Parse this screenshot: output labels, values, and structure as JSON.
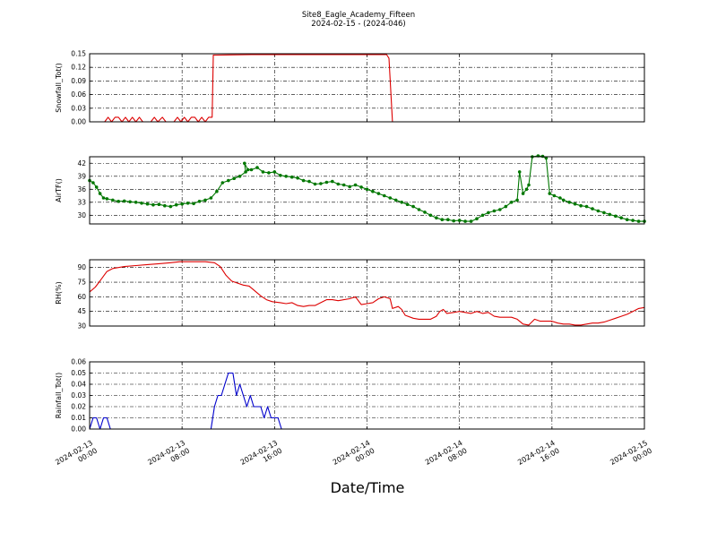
{
  "figure": {
    "title_line1": "Site8_Eagle_Academy_Fifteen",
    "title_line2": "2024-02-15 - (2024-046)",
    "xlabel": "Date/Time"
  },
  "x_axis": {
    "range_hours": [
      0,
      48
    ],
    "ticks": [
      {
        "h": 0,
        "line1": "2024-02-13",
        "line2": "00:00"
      },
      {
        "h": 8,
        "line1": "2024-02-13",
        "line2": "08:00"
      },
      {
        "h": 16,
        "line1": "2024-02-13",
        "line2": "16:00"
      },
      {
        "h": 24,
        "line1": "2024-02-14",
        "line2": "00:00"
      },
      {
        "h": 32,
        "line1": "2024-02-14",
        "line2": "08:00"
      },
      {
        "h": 40,
        "line1": "2024-02-14",
        "line2": "16:00"
      },
      {
        "h": 48,
        "line1": "2024-02-15",
        "line2": "00:00"
      }
    ]
  },
  "chart_data": [
    {
      "type": "line",
      "ylabel": "Snowfall_Tot()",
      "ylim": [
        0,
        0.15
      ],
      "yticks": [
        "0.00",
        "0.03",
        "0.06",
        "0.09",
        "0.12",
        "0.15"
      ],
      "color": "#dd0000",
      "markers": false,
      "grid": true,
      "points": [
        [
          0,
          0
        ],
        [
          1.3,
          0
        ],
        [
          1.6,
          0.01
        ],
        [
          1.9,
          0
        ],
        [
          2.2,
          0.01
        ],
        [
          2.5,
          0.01
        ],
        [
          2.8,
          0
        ],
        [
          3.1,
          0.01
        ],
        [
          3.4,
          0
        ],
        [
          3.7,
          0.01
        ],
        [
          4,
          0
        ],
        [
          4.3,
          0.01
        ],
        [
          4.6,
          0
        ],
        [
          5,
          0
        ],
        [
          5.3,
          0
        ],
        [
          5.6,
          0.01
        ],
        [
          5.9,
          0
        ],
        [
          6.3,
          0.01
        ],
        [
          6.6,
          0
        ],
        [
          7,
          0
        ],
        [
          7.3,
          0
        ],
        [
          7.6,
          0.01
        ],
        [
          7.9,
          0
        ],
        [
          8.2,
          0.01
        ],
        [
          8.5,
          0
        ],
        [
          8.8,
          0.01
        ],
        [
          9.1,
          0.01
        ],
        [
          9.4,
          0
        ],
        [
          9.7,
          0.01
        ],
        [
          10,
          0
        ],
        [
          10.3,
          0.01
        ],
        [
          10.6,
          0.01
        ],
        [
          10.7,
          0.147
        ],
        [
          11,
          0.147
        ],
        [
          14,
          0.148
        ],
        [
          18,
          0.148
        ],
        [
          22,
          0.148
        ],
        [
          25,
          0.148
        ],
        [
          25.7,
          0.148
        ],
        [
          25.9,
          0.14
        ],
        [
          26.2,
          0
        ],
        [
          48,
          0
        ]
      ]
    },
    {
      "type": "line",
      "ylabel": "AirTF()",
      "ylim": [
        28,
        43.5
      ],
      "yticks": [
        "30",
        "33",
        "36",
        "39",
        "42"
      ],
      "color": "#007700",
      "markers": true,
      "grid": true,
      "points": [
        [
          0,
          38
        ],
        [
          0.3,
          37.5
        ],
        [
          0.6,
          36.5
        ],
        [
          0.9,
          35
        ],
        [
          1.2,
          34
        ],
        [
          1.5,
          33.8
        ],
        [
          2,
          33.5
        ],
        [
          2.5,
          33.2
        ],
        [
          3,
          33.3
        ],
        [
          3.5,
          33.1
        ],
        [
          4,
          33
        ],
        [
          4.5,
          32.8
        ],
        [
          5,
          32.6
        ],
        [
          5.5,
          32.4
        ],
        [
          6,
          32.5
        ],
        [
          6.5,
          32.2
        ],
        [
          7,
          32
        ],
        [
          7.5,
          32.4
        ],
        [
          8,
          32.6
        ],
        [
          8.5,
          32.8
        ],
        [
          9,
          32.7
        ],
        [
          9.5,
          33.2
        ],
        [
          10,
          33.5
        ],
        [
          10.5,
          34
        ],
        [
          11,
          35.5
        ],
        [
          11.5,
          37.5
        ],
        [
          12,
          38
        ],
        [
          12.5,
          38.5
        ],
        [
          13,
          39
        ],
        [
          13.5,
          40
        ],
        [
          13.4,
          42
        ],
        [
          13.7,
          40.5
        ],
        [
          14,
          40.5
        ],
        [
          14.5,
          41
        ],
        [
          15,
          40
        ],
        [
          15.5,
          39.8
        ],
        [
          16,
          40
        ],
        [
          16.5,
          39.2
        ],
        [
          17,
          39
        ],
        [
          17.5,
          38.8
        ],
        [
          18,
          38.6
        ],
        [
          18.5,
          38
        ],
        [
          19,
          37.8
        ],
        [
          19.5,
          37.2
        ],
        [
          20,
          37.3
        ],
        [
          20.5,
          37.6
        ],
        [
          21,
          37.8
        ],
        [
          21.5,
          37.2
        ],
        [
          22,
          37
        ],
        [
          22.5,
          36.6
        ],
        [
          23,
          37
        ],
        [
          23.5,
          36.5
        ],
        [
          24,
          36
        ],
        [
          24.5,
          35.5
        ],
        [
          25,
          35
        ],
        [
          25.5,
          34.5
        ],
        [
          26,
          34
        ],
        [
          26.5,
          33.5
        ],
        [
          27,
          33
        ],
        [
          27.5,
          32.5
        ],
        [
          28,
          32
        ],
        [
          28.5,
          31.3
        ],
        [
          29,
          30.7
        ],
        [
          29.5,
          30
        ],
        [
          30,
          29.4
        ],
        [
          30.5,
          29
        ],
        [
          31,
          29
        ],
        [
          31.5,
          28.7
        ],
        [
          32,
          28.8
        ],
        [
          32.5,
          28.6
        ],
        [
          33,
          28.6
        ],
        [
          33.5,
          29.2
        ],
        [
          34,
          30
        ],
        [
          34.5,
          30.6
        ],
        [
          35,
          31
        ],
        [
          35.5,
          31.3
        ],
        [
          36,
          32
        ],
        [
          36.5,
          33
        ],
        [
          37,
          33.5
        ],
        [
          37.2,
          40
        ],
        [
          37.5,
          35
        ],
        [
          37.8,
          36
        ],
        [
          38,
          37
        ],
        [
          38.3,
          43.5
        ],
        [
          38.8,
          43.7
        ],
        [
          39.2,
          43.6
        ],
        [
          39.5,
          43.2
        ],
        [
          39.8,
          35
        ],
        [
          40.2,
          34.5
        ],
        [
          40.7,
          34
        ],
        [
          41,
          33.5
        ],
        [
          41.5,
          33
        ],
        [
          42,
          32.6
        ],
        [
          42.5,
          32.2
        ],
        [
          43,
          32
        ],
        [
          43.5,
          31.5
        ],
        [
          44,
          31
        ],
        [
          44.5,
          30.6
        ],
        [
          45,
          30.2
        ],
        [
          45.5,
          29.8
        ],
        [
          46,
          29.4
        ],
        [
          46.5,
          29
        ],
        [
          47,
          28.8
        ],
        [
          47.5,
          28.6
        ],
        [
          48,
          28.6
        ]
      ]
    },
    {
      "type": "line",
      "ylabel": "RH(%)",
      "ylim": [
        30,
        98
      ],
      "yticks": [
        "30",
        "45",
        "60",
        "75",
        "90"
      ],
      "color": "#dd0000",
      "markers": false,
      "grid": true,
      "points": [
        [
          0,
          65
        ],
        [
          0.5,
          70
        ],
        [
          1,
          78
        ],
        [
          1.5,
          86
        ],
        [
          2,
          89
        ],
        [
          3,
          91
        ],
        [
          4,
          92
        ],
        [
          5,
          93
        ],
        [
          6,
          94
        ],
        [
          7,
          95
        ],
        [
          7.8,
          96
        ],
        [
          9,
          96
        ],
        [
          10,
          96
        ],
        [
          10.8,
          95
        ],
        [
          11.3,
          91
        ],
        [
          11.8,
          82
        ],
        [
          12.3,
          76
        ],
        [
          12.8,
          74
        ],
        [
          13.3,
          72
        ],
        [
          13.8,
          71
        ],
        [
          14.3,
          66
        ],
        [
          14.8,
          61
        ],
        [
          15.3,
          57
        ],
        [
          15.8,
          55
        ],
        [
          16.5,
          54
        ],
        [
          17,
          53
        ],
        [
          17.5,
          54
        ],
        [
          18,
          51
        ],
        [
          18.5,
          50
        ],
        [
          19,
          51
        ],
        [
          19.5,
          51
        ],
        [
          20,
          54
        ],
        [
          20.5,
          57
        ],
        [
          21,
          57
        ],
        [
          21.5,
          56
        ],
        [
          22,
          57
        ],
        [
          22.5,
          58
        ],
        [
          23,
          60
        ],
        [
          23.5,
          52
        ],
        [
          24,
          53
        ],
        [
          24.5,
          54
        ],
        [
          25,
          58
        ],
        [
          25.5,
          60
        ],
        [
          26,
          58
        ],
        [
          26.2,
          48
        ],
        [
          26.7,
          50
        ],
        [
          27,
          47
        ],
        [
          27.3,
          41
        ],
        [
          28,
          38
        ],
        [
          28.5,
          37
        ],
        [
          29,
          37
        ],
        [
          29.5,
          37
        ],
        [
          30,
          40
        ],
        [
          30.3,
          45
        ],
        [
          30.6,
          47
        ],
        [
          30.9,
          43
        ],
        [
          31.5,
          44
        ],
        [
          32,
          45
        ],
        [
          32.5,
          44
        ],
        [
          33,
          43
        ],
        [
          33.5,
          45
        ],
        [
          34,
          43
        ],
        [
          34.5,
          44
        ],
        [
          35,
          40
        ],
        [
          35.5,
          39
        ],
        [
          36,
          39
        ],
        [
          36.5,
          39
        ],
        [
          37,
          37
        ],
        [
          37.5,
          32
        ],
        [
          38,
          31
        ],
        [
          38.5,
          37
        ],
        [
          39,
          35
        ],
        [
          39.5,
          35
        ],
        [
          40,
          35
        ],
        [
          40.5,
          33
        ],
        [
          41,
          32
        ],
        [
          41.5,
          32
        ],
        [
          42,
          31
        ],
        [
          42.5,
          31
        ],
        [
          43,
          32
        ],
        [
          43.5,
          33
        ],
        [
          44,
          33
        ],
        [
          44.5,
          34
        ],
        [
          45,
          36
        ],
        [
          45.5,
          38
        ],
        [
          46,
          40
        ],
        [
          46.5,
          42
        ],
        [
          47,
          45
        ],
        [
          47.5,
          48
        ],
        [
          48,
          49
        ]
      ]
    },
    {
      "type": "line",
      "ylabel": "Rainfall_Tot()",
      "ylim": [
        0,
        0.06
      ],
      "yticks": [
        "0.00",
        "0.01",
        "0.02",
        "0.03",
        "0.04",
        "0.05",
        "0.06"
      ],
      "color": "#0000cc",
      "markers": false,
      "grid": true,
      "points": [
        [
          0,
          0
        ],
        [
          0.3,
          0.01
        ],
        [
          0.6,
          0.01
        ],
        [
          0.9,
          0
        ],
        [
          1.2,
          0.01
        ],
        [
          1.5,
          0.01
        ],
        [
          1.8,
          0
        ],
        [
          10.5,
          0
        ],
        [
          10.8,
          0.02
        ],
        [
          11.1,
          0.03
        ],
        [
          11.4,
          0.03
        ],
        [
          11.7,
          0.04
        ],
        [
          12,
          0.05
        ],
        [
          12.4,
          0.05
        ],
        [
          12.7,
          0.03
        ],
        [
          13,
          0.04
        ],
        [
          13.3,
          0.03
        ],
        [
          13.6,
          0.02
        ],
        [
          13.9,
          0.03
        ],
        [
          14.2,
          0.02
        ],
        [
          14.5,
          0.02
        ],
        [
          14.8,
          0.02
        ],
        [
          15.1,
          0.01
        ],
        [
          15.4,
          0.02
        ],
        [
          15.7,
          0.01
        ],
        [
          16,
          0.01
        ],
        [
          16.3,
          0.01
        ],
        [
          16.6,
          0
        ],
        [
          17,
          0
        ],
        [
          48,
          0
        ]
      ]
    }
  ]
}
